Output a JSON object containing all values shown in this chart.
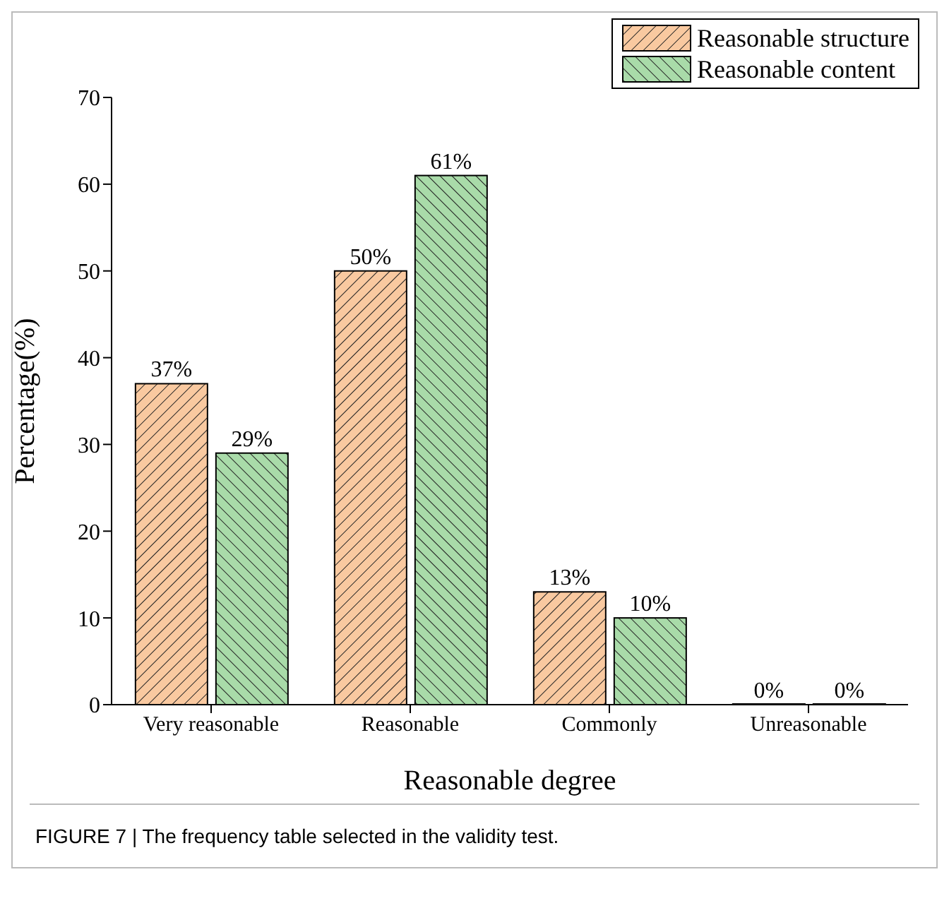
{
  "chart_data": {
    "type": "bar",
    "xlabel": "Reasonable degree",
    "ylabel": "Percentage(%)",
    "categories": [
      "Very reasonable",
      "Reasonable",
      "Commonly",
      "Unreasonable"
    ],
    "series": [
      {
        "name": "Reasonable structure",
        "color": "#f9c9a0",
        "values": [
          37,
          50,
          13,
          0
        ],
        "value_labels": [
          "37%",
          "50%",
          "13%",
          "0%"
        ]
      },
      {
        "name": "Reasonable content",
        "color": "#a9dba9",
        "values": [
          29,
          61,
          10,
          0
        ],
        "value_labels": [
          "29%",
          "61%",
          "10%",
          "0%"
        ]
      }
    ],
    "ylim": [
      0,
      70
    ],
    "yticks": [
      0,
      10,
      20,
      30,
      40,
      50,
      60,
      70
    ],
    "grid": false,
    "legend": "top right",
    "annotations": [
      "FIGURE 7 | The frequency table selected in the validity test."
    ]
  }
}
